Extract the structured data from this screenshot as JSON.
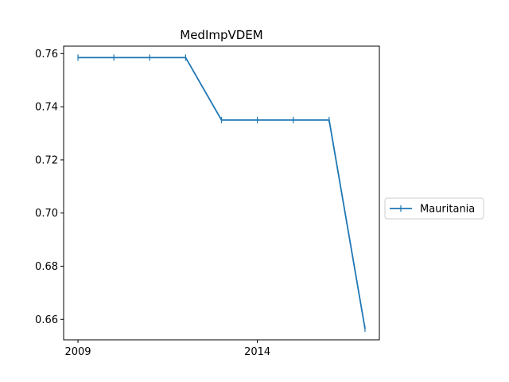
{
  "chart_data": {
    "type": "line",
    "title": "MedImpVDEM",
    "xlabel": "",
    "ylabel": "",
    "x": [
      2009,
      2010,
      2011,
      2012,
      2013,
      2014,
      2015,
      2016,
      2017
    ],
    "series": [
      {
        "name": "Mauritania",
        "color": "#1f77b4",
        "marker": "vertical-line",
        "values": [
          0.7585,
          0.7585,
          0.7585,
          0.7585,
          0.735,
          0.735,
          0.735,
          0.735,
          0.6565
        ]
      }
    ],
    "xlim": [
      2008.6,
      2017.4
    ],
    "ylim": [
      0.6523,
      0.7628
    ],
    "xticks": [
      2009,
      2014
    ],
    "yticks": [
      0.66,
      0.68,
      0.7,
      0.72,
      0.74,
      0.76
    ],
    "ytick_labels": [
      "0.66",
      "0.68",
      "0.70",
      "0.72",
      "0.74",
      "0.76"
    ],
    "grid": false,
    "legend_position": "right-outside"
  }
}
